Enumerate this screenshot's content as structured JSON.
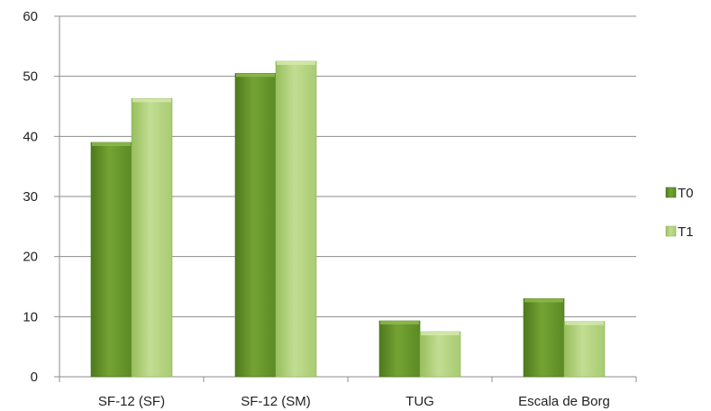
{
  "chart_data": {
    "type": "bar",
    "categories": [
      "SF-12 (SF)",
      "SF-12 (SM)",
      "TUG",
      "Escala de Borg"
    ],
    "series": [
      {
        "name": "T0",
        "values": [
          39,
          50.5,
          9.3,
          13
        ],
        "color": "#6e9a2f"
      },
      {
        "name": "T1",
        "values": [
          46.3,
          52.5,
          7.5,
          9.2
        ],
        "color": "#b3d37e"
      }
    ],
    "ylim": [
      0,
      60
    ],
    "yticks": [
      0,
      10,
      20,
      30,
      40,
      50,
      60
    ],
    "grid": true,
    "legend": "right"
  }
}
